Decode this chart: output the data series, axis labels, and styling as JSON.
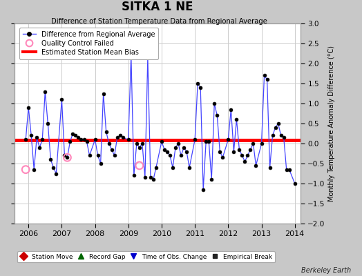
{
  "title": "SITKA 1 NE",
  "subtitle": "Difference of Station Temperature Data from Regional Average",
  "ylabel_right": "Monthly Temperature Anomaly Difference (°C)",
  "credit": "Berkeley Earth",
  "bias": 0.08,
  "xlim": [
    2005.58,
    2014.17
  ],
  "ylim": [
    -2.0,
    3.0
  ],
  "yticks": [
    -2,
    -1.5,
    -1,
    -0.5,
    0,
    0.5,
    1,
    1.5,
    2,
    2.5,
    3
  ],
  "xticks": [
    2006,
    2007,
    2008,
    2009,
    2010,
    2011,
    2012,
    2013,
    2014
  ],
  "fig_bg_color": "#c8c8c8",
  "plot_bg_color": "#ffffff",
  "grid_color": "#cccccc",
  "line_color": "#4444ff",
  "marker_color": "#000000",
  "bias_color": "#ff0000",
  "qc_color": "#ff88bb",
  "data": {
    "times": [
      2005.917,
      2006.0,
      2006.083,
      2006.167,
      2006.25,
      2006.333,
      2006.417,
      2006.5,
      2006.583,
      2006.667,
      2006.75,
      2006.833,
      2007.0,
      2007.083,
      2007.167,
      2007.25,
      2007.333,
      2007.417,
      2007.5,
      2007.583,
      2007.667,
      2007.75,
      2007.833,
      2008.0,
      2008.083,
      2008.167,
      2008.25,
      2008.333,
      2008.417,
      2008.5,
      2008.583,
      2008.667,
      2008.75,
      2008.833,
      2009.0,
      2009.083,
      2009.167,
      2009.25,
      2009.333,
      2009.417,
      2009.5,
      2009.583,
      2009.667,
      2009.75,
      2009.833,
      2010.0,
      2010.083,
      2010.167,
      2010.25,
      2010.333,
      2010.417,
      2010.5,
      2010.583,
      2010.667,
      2010.75,
      2010.833,
      2011.0,
      2011.083,
      2011.167,
      2011.25,
      2011.333,
      2011.417,
      2011.5,
      2011.583,
      2011.667,
      2011.75,
      2011.833,
      2012.0,
      2012.083,
      2012.167,
      2012.25,
      2012.333,
      2012.417,
      2012.5,
      2012.583,
      2012.667,
      2012.75,
      2012.833,
      2013.0,
      2013.083,
      2013.167,
      2013.25,
      2013.333,
      2013.417,
      2013.5,
      2013.583,
      2013.667,
      2013.75,
      2013.833,
      2014.0
    ],
    "values": [
      0.1,
      0.9,
      0.2,
      -0.65,
      0.15,
      -0.1,
      0.1,
      1.3,
      0.5,
      -0.4,
      -0.6,
      -0.75,
      1.1,
      -0.3,
      -0.35,
      0.05,
      0.25,
      0.2,
      0.15,
      0.1,
      0.1,
      0.05,
      -0.3,
      0.1,
      -0.3,
      -0.5,
      1.25,
      0.3,
      0.0,
      -0.15,
      -0.3,
      0.15,
      0.2,
      0.15,
      0.1,
      2.2,
      -0.8,
      0.0,
      -0.1,
      0.0,
      -0.85,
      2.15,
      -0.85,
      -0.9,
      -0.6,
      0.05,
      -0.15,
      -0.2,
      -0.3,
      -0.6,
      -0.1,
      0.0,
      -0.3,
      -0.1,
      -0.2,
      -0.6,
      0.1,
      1.5,
      1.4,
      -1.15,
      0.05,
      0.05,
      -0.9,
      1.0,
      0.7,
      -0.2,
      -0.35,
      0.1,
      0.85,
      -0.2,
      0.6,
      -0.15,
      -0.3,
      -0.45,
      -0.3,
      -0.15,
      0.0,
      -0.55,
      0.0,
      1.7,
      1.6,
      -0.6,
      0.2,
      0.4,
      0.5,
      0.2,
      0.15,
      -0.65,
      -0.65,
      -1.0
    ],
    "qc_times": [
      2005.917,
      2007.167,
      2009.333
    ],
    "qc_values": [
      -0.65,
      -0.35,
      -0.55
    ]
  }
}
